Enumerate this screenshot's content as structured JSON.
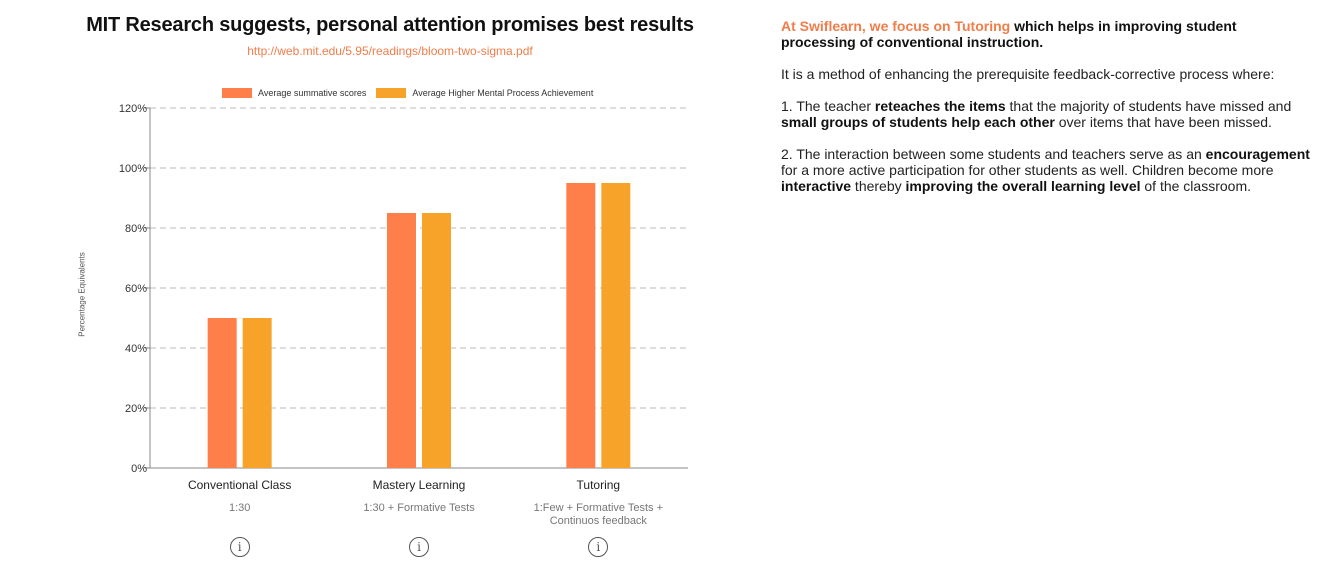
{
  "header": {
    "title": "MIT Research suggests, personal attention promises best results",
    "source_link": "http://web.mit.edu/5.95/readings/bloom-two-sigma.pdf"
  },
  "colors": {
    "series1": "#ff7f4a",
    "series2": "#f7a32a",
    "accent": "#f07d4a"
  },
  "chart_data": {
    "type": "bar",
    "categories": [
      "Conventional Class",
      "Mastery Learning",
      "Tutoring"
    ],
    "category_subtitles": [
      "1:30",
      "1:30 + Formative Tests",
      "1:Few + Formative Tests + Continuos feedback"
    ],
    "series": [
      {
        "name": "Average summative scores",
        "values": [
          50,
          85,
          95
        ]
      },
      {
        "name": "Average Higher Mental Process Achievement",
        "values": [
          50,
          85,
          95
        ]
      }
    ],
    "ylabel": "Percentage Equivalents",
    "ylim": [
      0,
      120
    ],
    "yticks": [
      0,
      20,
      40,
      60,
      80,
      100,
      120
    ],
    "ytick_labels": [
      "0%",
      "20%",
      "40%",
      "60%",
      "80%",
      "100%",
      "120%"
    ],
    "grid": true,
    "legend_position": "top"
  },
  "info_icons": [
    "info-icon",
    "info-icon",
    "info-icon"
  ],
  "right_text": {
    "intro_highlight": "At Swiflearn, we focus on Tutoring",
    "intro_rest": " which helps in improving student processing of conventional instruction.",
    "para2": "It is a method of enhancing the prerequisite feedback-corrective process where:",
    "p3_a": "1. The teacher ",
    "p3_b": "reteaches the items",
    "p3_c": " that the majority of students have missed and ",
    "p3_d": "small groups of students help each other",
    "p3_e": " over items that have been missed.",
    "p4_a": "2. The interaction between some students and teachers serve as an ",
    "p4_b": "encouragement",
    "p4_c": " for a more active participation for other students as well. Children become more ",
    "p4_d": "interactive",
    "p4_e": " thereby ",
    "p4_f": "improving the overall learning level",
    "p4_g": " of the classroom."
  }
}
